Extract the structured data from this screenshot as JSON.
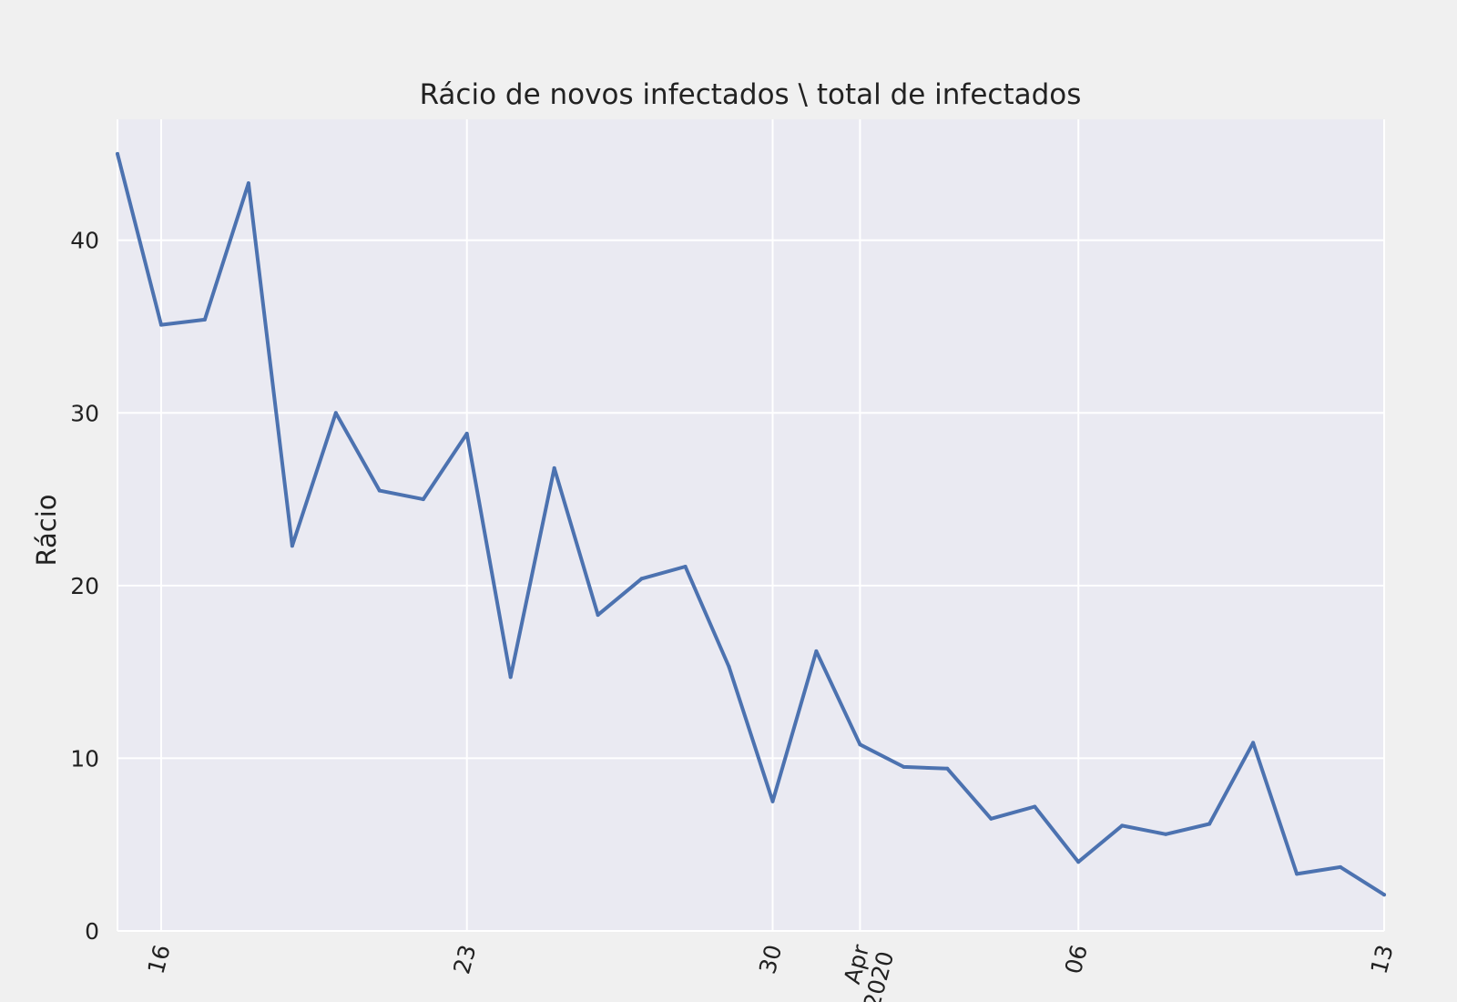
{
  "chart_data": {
    "type": "line",
    "title": "Rácio de novos infectados \\ total de infectados",
    "xlabel": "",
    "ylabel": "Rácio",
    "x_start": "2020-03-15",
    "x_end": "2020-04-13",
    "xlim": [
      "2020-03-15",
      "2020-04-13"
    ],
    "ylim": [
      0,
      47
    ],
    "y_ticks": [
      0,
      10,
      20,
      30,
      40
    ],
    "x_ticks": [
      {
        "date": "2020-03-16",
        "label": "16"
      },
      {
        "date": "2020-03-23",
        "label": "23"
      },
      {
        "date": "2020-03-30",
        "label": "30"
      },
      {
        "date": "2020-04-01",
        "label": "Apr\n2020"
      },
      {
        "date": "2020-04-06",
        "label": "06"
      },
      {
        "date": "2020-04-13",
        "label": "13"
      }
    ],
    "series": [
      {
        "x": [
          "2020-03-15",
          "2020-03-16",
          "2020-03-17",
          "2020-03-18",
          "2020-03-19",
          "2020-03-20",
          "2020-03-21",
          "2020-03-22",
          "2020-03-23",
          "2020-03-24",
          "2020-03-25",
          "2020-03-26",
          "2020-03-27",
          "2020-03-28",
          "2020-03-29",
          "2020-03-30",
          "2020-03-31",
          "2020-04-01",
          "2020-04-02",
          "2020-04-03",
          "2020-04-04",
          "2020-04-05",
          "2020-04-06",
          "2020-04-07",
          "2020-04-08",
          "2020-04-09",
          "2020-04-10",
          "2020-04-11",
          "2020-04-12",
          "2020-04-13"
        ],
        "values": [
          45.0,
          35.1,
          35.4,
          43.3,
          22.3,
          30.0,
          25.5,
          25.0,
          28.8,
          14.7,
          26.8,
          18.3,
          20.4,
          21.1,
          15.3,
          7.5,
          16.2,
          10.8,
          9.5,
          9.4,
          6.5,
          7.2,
          4.0,
          6.1,
          5.6,
          6.2,
          10.9,
          3.3,
          3.7,
          2.1
        ],
        "color": "#4c72b0"
      }
    ],
    "grid": true,
    "colors": {
      "plot_bg": "#eaeaf2",
      "grid": "#ffffff",
      "figure_bg": "#f0f0f0",
      "text": "#222222"
    }
  }
}
